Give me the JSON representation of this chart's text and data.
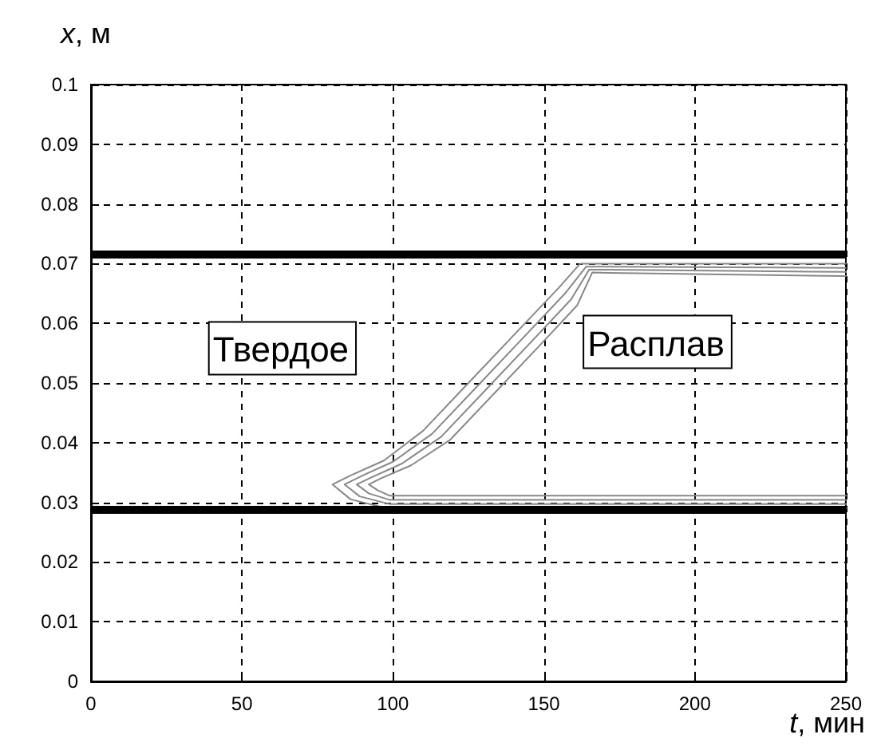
{
  "chart_data": {
    "type": "line",
    "xlabel": "t, мин",
    "ylabel": "x, м",
    "xlim": [
      0,
      250
    ],
    "xticks": [
      0,
      50,
      100,
      150,
      200,
      250
    ],
    "ylim": [
      0,
      0.1
    ],
    "yticks": [
      0,
      0.01,
      0.02,
      0.03,
      0.04,
      0.05,
      0.06,
      0.07,
      0.08,
      0.09,
      0.1
    ],
    "grid": true,
    "marker": "none",
    "line_style": "solid",
    "series": [
      {
        "color": "#888888",
        "x": [
          250,
          98,
          86,
          80,
          86,
          97,
          110,
          125,
          140,
          155,
          162,
          250
        ],
        "values": [
          0.029,
          0.029,
          0.0305,
          0.033,
          0.0345,
          0.037,
          0.042,
          0.05,
          0.058,
          0.066,
          0.07,
          0.07
        ]
      },
      {
        "color": "#888888",
        "x": [
          250,
          99,
          89,
          84,
          90,
          100,
          113,
          128,
          143,
          157,
          164,
          250
        ],
        "values": [
          0.0297,
          0.0297,
          0.031,
          0.033,
          0.0345,
          0.0368,
          0.0415,
          0.0495,
          0.0575,
          0.065,
          0.0695,
          0.0693
        ]
      },
      {
        "color": "#888888",
        "x": [
          250,
          99,
          92,
          88,
          93,
          103,
          116,
          131,
          146,
          159,
          165,
          250
        ],
        "values": [
          0.0304,
          0.0304,
          0.0315,
          0.033,
          0.0342,
          0.0365,
          0.041,
          0.049,
          0.057,
          0.064,
          0.069,
          0.0686
        ]
      },
      {
        "color": "#888888",
        "x": [
          250,
          99,
          95,
          92,
          96,
          106,
          119,
          134,
          149,
          161,
          166,
          250
        ],
        "values": [
          0.0311,
          0.0311,
          0.032,
          0.033,
          0.034,
          0.0362,
          0.0405,
          0.0485,
          0.0565,
          0.063,
          0.0685,
          0.0679
        ]
      }
    ],
    "ref_lines": [
      {
        "axis": "y",
        "value": 0.0717,
        "color": "#000000"
      },
      {
        "axis": "y",
        "value": 0.0289,
        "color": "#000000"
      }
    ],
    "annotations": [
      "Твердое",
      "Расплав"
    ]
  }
}
